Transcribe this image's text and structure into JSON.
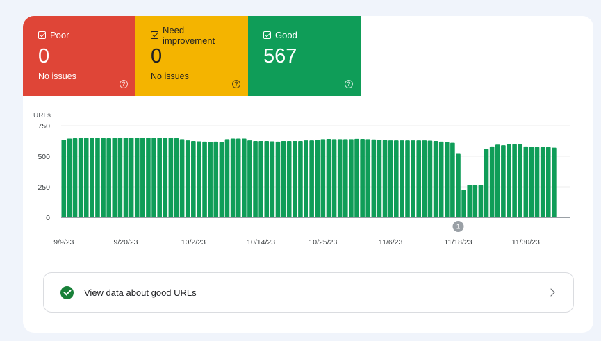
{
  "tiles": {
    "poor": {
      "label": "Poor",
      "count": "0",
      "sub": "No issues",
      "color": "#df4537"
    },
    "need": {
      "label": "Need improvement",
      "count": "0",
      "sub": "No issues",
      "color": "#f4b400"
    },
    "good": {
      "label": "Good",
      "count": "567",
      "sub": "",
      "color": "#0f9d58"
    },
    "help_glyph": "?"
  },
  "chart_data": {
    "type": "bar",
    "ylabel": "URLs",
    "ylim": [
      0,
      750
    ],
    "yticks": [
      0,
      250,
      500,
      750
    ],
    "x_tick_labels": [
      "9/9/23",
      "9/20/23",
      "10/2/23",
      "10/14/23",
      "10/25/23",
      "11/6/23",
      "11/18/23",
      "11/30/23"
    ],
    "x_tick_bar_index": [
      0,
      11,
      23,
      35,
      46,
      58,
      70,
      82
    ],
    "annotation": {
      "label": "1",
      "bar_index": 70
    },
    "grid": true,
    "bar_color": "#0f9d58",
    "series": [
      {
        "values": [
          635,
          645,
          648,
          652,
          650,
          650,
          652,
          650,
          648,
          650,
          652,
          652,
          652,
          652,
          652,
          652,
          652,
          652,
          652,
          652,
          648,
          640,
          630,
          625,
          622,
          620,
          618,
          620,
          615,
          640,
          645,
          645,
          645,
          630,
          625,
          625,
          625,
          622,
          620,
          625,
          625,
          625,
          625,
          630,
          630,
          635,
          640,
          642,
          640,
          640,
          640,
          640,
          643,
          642,
          640,
          638,
          636,
          632,
          630,
          630,
          630,
          630,
          630,
          630,
          630,
          628,
          625,
          620,
          615,
          610,
          520,
          225,
          265,
          265,
          265,
          560,
          580,
          595,
          590,
          598,
          598,
          598,
          580,
          575,
          575,
          575,
          575,
          570
        ]
      }
    ]
  },
  "link": {
    "label": "View data about good URLs"
  }
}
